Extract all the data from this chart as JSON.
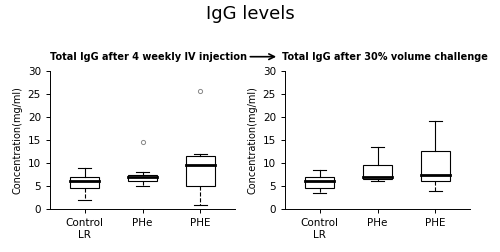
{
  "title": "IgG levels",
  "subtitle_left": "Total IgG after 4 weekly IV injection",
  "subtitle_right": "Total IgG after 30% volume challenge",
  "ylabel": "Concentration(mg/ml)",
  "ylim": [
    0,
    30
  ],
  "yticks": [
    0,
    5,
    10,
    15,
    20,
    25,
    30
  ],
  "categories": [
    "Control\nLR",
    "PHe",
    "PHE"
  ],
  "plot1": {
    "Control LR": {
      "whislo": 2.0,
      "q1": 4.5,
      "med": 6.0,
      "q3": 7.0,
      "whishi": 9.0,
      "fliers": []
    },
    "PHe": {
      "whislo": 5.0,
      "q1": 6.0,
      "med": 7.0,
      "q3": 7.5,
      "whishi": 8.0,
      "fliers": [
        14.5
      ]
    },
    "PHE": {
      "whislo": 1.0,
      "q1": 5.0,
      "med": 9.5,
      "q3": 11.5,
      "whishi": 12.0,
      "fliers": [
        25.5
      ]
    }
  },
  "plot2": {
    "Control LR": {
      "whislo": 3.5,
      "q1": 4.5,
      "med": 6.0,
      "q3": 7.0,
      "whishi": 8.5,
      "fliers": []
    },
    "PHe": {
      "whislo": 6.0,
      "q1": 6.5,
      "med": 7.0,
      "q3": 9.5,
      "whishi": 13.5,
      "fliers": []
    },
    "PHE": {
      "whislo": 4.0,
      "q1": 6.0,
      "med": 7.5,
      "q3": 12.5,
      "whishi": 19.0,
      "fliers": []
    }
  },
  "box_color": "#000000",
  "median_color": "#000000",
  "flier_color": "#888888",
  "background_color": "#ffffff",
  "title_fontsize": 13,
  "label_fontsize": 7,
  "tick_fontsize": 7.5,
  "subtitle_fontsize": 7
}
